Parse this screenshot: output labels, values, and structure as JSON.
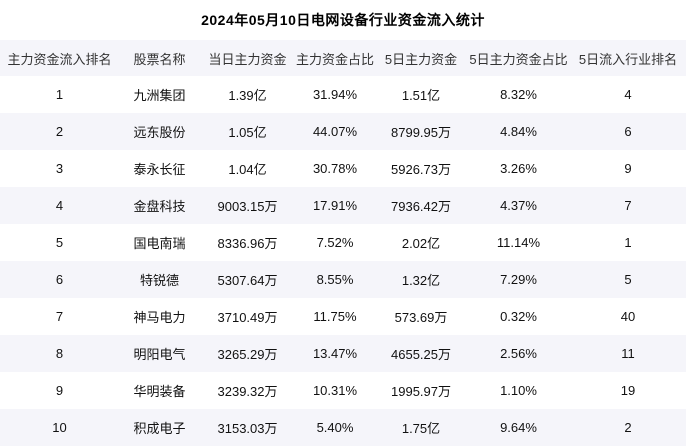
{
  "title": "2024年05月10日电网设备行业资金流入统计",
  "colors": {
    "stripe": "#f5f5fa",
    "header_text": "#333333",
    "cell_text": "#111111",
    "background": "#ffffff"
  },
  "table": {
    "columns": [
      "主力资金流入排名",
      "股票名称",
      "当日主力资金",
      "主力资金占比",
      "5日主力资金",
      "5日主力资金占比",
      "5日流入行业排名"
    ],
    "rows": [
      [
        "1",
        "九洲集团",
        "1.39亿",
        "31.94%",
        "1.51亿",
        "8.32%",
        "4"
      ],
      [
        "2",
        "远东股份",
        "1.05亿",
        "44.07%",
        "8799.95万",
        "4.84%",
        "6"
      ],
      [
        "3",
        "泰永长征",
        "1.04亿",
        "30.78%",
        "5926.73万",
        "3.26%",
        "9"
      ],
      [
        "4",
        "金盘科技",
        "9003.15万",
        "17.91%",
        "7936.42万",
        "4.37%",
        "7"
      ],
      [
        "5",
        "国电南瑞",
        "8336.96万",
        "7.52%",
        "2.02亿",
        "11.14%",
        "1"
      ],
      [
        "6",
        "特锐德",
        "5307.64万",
        "8.55%",
        "1.32亿",
        "7.29%",
        "5"
      ],
      [
        "7",
        "神马电力",
        "3710.49万",
        "11.75%",
        "573.69万",
        "0.32%",
        "40"
      ],
      [
        "8",
        "明阳电气",
        "3265.29万",
        "13.47%",
        "4655.25万",
        "2.56%",
        "11"
      ],
      [
        "9",
        "华明装备",
        "3239.32万",
        "10.31%",
        "1995.97万",
        "1.10%",
        "19"
      ],
      [
        "10",
        "积成电子",
        "3153.03万",
        "5.40%",
        "1.75亿",
        "9.64%",
        "2"
      ]
    ]
  },
  "chart_data": {
    "type": "table",
    "title": "2024年05月10日电网设备行业资金流入统计",
    "columns": [
      "主力资金流入排名",
      "股票名称",
      "当日主力资金",
      "主力资金占比",
      "5日主力资金",
      "5日主力资金占比",
      "5日流入行业排名"
    ],
    "rows": [
      [
        "1",
        "九洲集团",
        "1.39亿",
        "31.94%",
        "1.51亿",
        "8.32%",
        "4"
      ],
      [
        "2",
        "远东股份",
        "1.05亿",
        "44.07%",
        "8799.95万",
        "4.84%",
        "6"
      ],
      [
        "3",
        "泰永长征",
        "1.04亿",
        "30.78%",
        "5926.73万",
        "3.26%",
        "9"
      ],
      [
        "4",
        "金盘科技",
        "9003.15万",
        "17.91%",
        "7936.42万",
        "4.37%",
        "7"
      ],
      [
        "5",
        "国电南瑞",
        "8336.96万",
        "7.52%",
        "2.02亿",
        "11.14%",
        "1"
      ],
      [
        "6",
        "特锐德",
        "5307.64万",
        "8.55%",
        "1.32亿",
        "7.29%",
        "5"
      ],
      [
        "7",
        "神马电力",
        "3710.49万",
        "11.75%",
        "573.69万",
        "0.32%",
        "40"
      ],
      [
        "8",
        "明阳电气",
        "3265.29万",
        "13.47%",
        "4655.25万",
        "2.56%",
        "11"
      ],
      [
        "9",
        "华明装备",
        "3239.32万",
        "10.31%",
        "1995.97万",
        "1.10%",
        "19"
      ],
      [
        "10",
        "积成电子",
        "3153.03万",
        "5.40%",
        "1.75亿",
        "9.64%",
        "2"
      ]
    ]
  }
}
